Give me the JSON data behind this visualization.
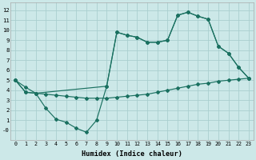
{
  "xlabel": "Humidex (Indice chaleur)",
  "background_color": "#cce8e8",
  "grid_color": "#aacfcf",
  "line_color": "#1a7060",
  "xlim": [
    -0.5,
    23.5
  ],
  "ylim": [
    -1.0,
    12.8
  ],
  "ytick_vals": [
    0,
    1,
    2,
    3,
    4,
    5,
    6,
    7,
    8,
    9,
    10,
    11,
    12
  ],
  "ytick_labels": [
    "-0",
    "1",
    "2",
    "3",
    "4",
    "5",
    "6",
    "7",
    "8",
    "9",
    "10",
    "11",
    "12"
  ],
  "xtick_vals": [
    0,
    1,
    2,
    3,
    4,
    5,
    6,
    7,
    8,
    9,
    10,
    11,
    12,
    13,
    14,
    15,
    16,
    17,
    18,
    19,
    20,
    21,
    22,
    23
  ],
  "line1_x": [
    0,
    1,
    2,
    3,
    4,
    5,
    6,
    7,
    8,
    9,
    10,
    11,
    12,
    13,
    14,
    15,
    16,
    17,
    18,
    19,
    20,
    21,
    22,
    23
  ],
  "line1_y": [
    5.0,
    4.3,
    3.7,
    3.6,
    3.5,
    3.4,
    3.3,
    3.2,
    3.2,
    3.2,
    3.3,
    3.4,
    3.5,
    3.6,
    3.8,
    4.0,
    4.2,
    4.4,
    4.6,
    4.7,
    4.9,
    5.0,
    5.1,
    5.2
  ],
  "line2_x": [
    0,
    1,
    2,
    3,
    4,
    5,
    6,
    7,
    8,
    9,
    10,
    11,
    12,
    13,
    14,
    15,
    16,
    17,
    18,
    19,
    20,
    21,
    22,
    23
  ],
  "line2_y": [
    5.0,
    3.8,
    3.7,
    2.2,
    1.1,
    0.8,
    0.2,
    -0.2,
    1.0,
    4.4,
    9.8,
    9.5,
    9.3,
    8.8,
    8.8,
    9.0,
    11.5,
    11.8,
    11.4,
    11.1,
    8.4,
    7.7,
    6.3,
    5.2
  ],
  "line3_x": [
    0,
    1,
    2,
    9,
    10,
    11,
    12,
    13,
    14,
    15,
    16,
    17,
    18,
    19,
    20,
    21,
    22,
    23
  ],
  "line3_y": [
    5.0,
    3.8,
    3.7,
    4.4,
    9.8,
    9.5,
    9.3,
    8.8,
    8.8,
    9.0,
    11.5,
    11.8,
    11.4,
    11.1,
    8.4,
    7.7,
    6.3,
    5.2
  ]
}
